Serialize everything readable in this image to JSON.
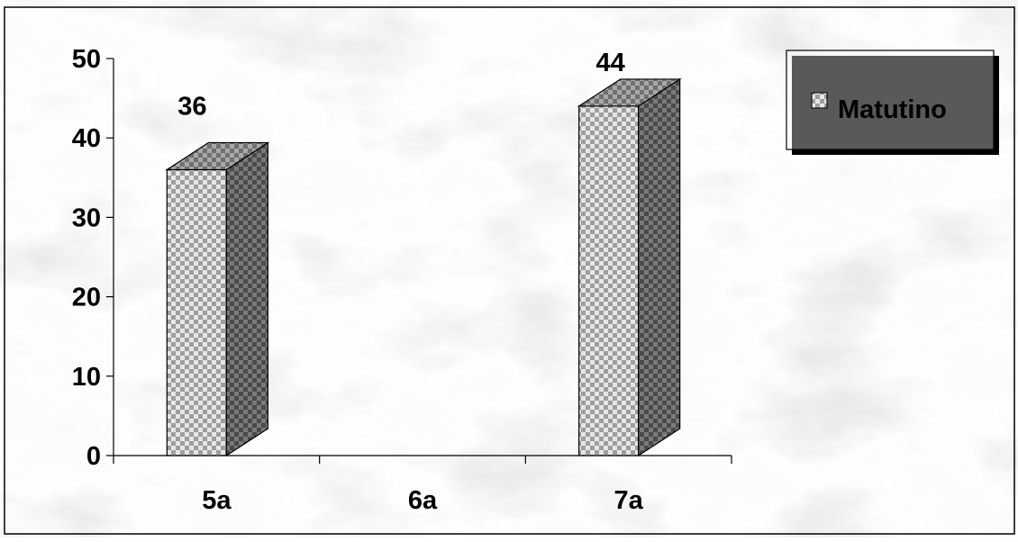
{
  "chart_data": {
    "type": "bar",
    "style": "3d-column",
    "background": "grey marble texture",
    "categories": [
      "5a",
      "6a",
      "7a"
    ],
    "series": [
      {
        "name": "Matutino",
        "values": [
          36,
          null,
          44
        ]
      }
    ],
    "data_labels": [
      "36",
      "",
      "44"
    ],
    "y_ticks": [
      "0",
      "10",
      "20",
      "30",
      "40",
      "50"
    ],
    "ylim": [
      0,
      50
    ],
    "grid": false,
    "legend_position": "top-right",
    "colors": {
      "bar_front": "#e3e3e3",
      "bar_pattern": "#9c9c9c",
      "bar_side": "#5e5e5e",
      "bar_top": "#8c8c8c",
      "text": "#000000"
    }
  }
}
